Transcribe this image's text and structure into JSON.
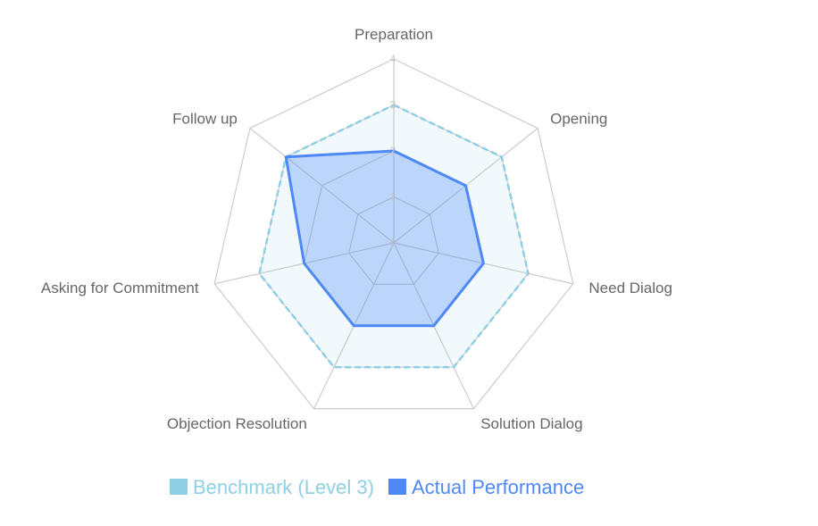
{
  "chart_data": {
    "type": "radar",
    "title": "",
    "categories": [
      "Preparation",
      "Opening",
      "Need Dialog",
      "Solution Dialog",
      "Objection Resolution",
      "Asking for Commitment",
      "Follow up"
    ],
    "ticks": [
      "0",
      "1",
      "2",
      "3",
      "4"
    ],
    "range": [
      0,
      4
    ],
    "grid": true,
    "legend_position": "bottom",
    "series": [
      {
        "name": "Benchmark (Level 3)",
        "values": [
          3,
          3,
          3,
          3,
          3,
          3,
          3
        ],
        "color": "#8ecfe6",
        "line_style": "dashed"
      },
      {
        "name": "Actual Performance",
        "values": [
          2,
          2,
          2,
          2,
          2,
          2,
          3
        ],
        "color": "#4d88f6",
        "line_style": "solid"
      }
    ]
  }
}
